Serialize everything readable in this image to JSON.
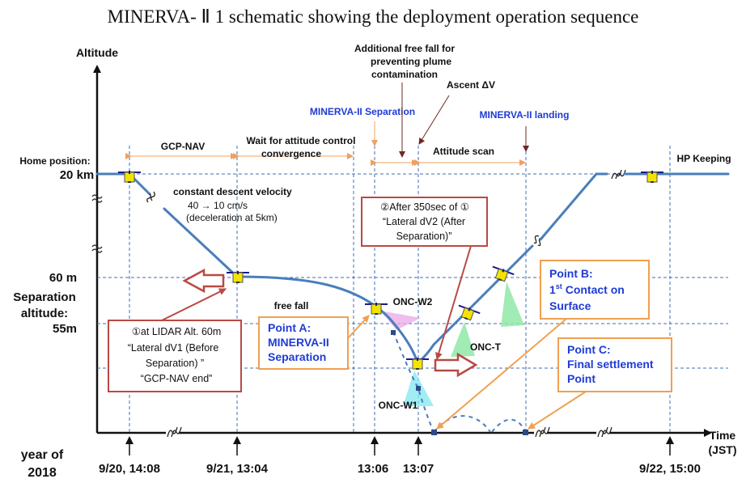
{
  "title": "MINERVA- Ⅱ 1 schematic showing the deployment operation sequence",
  "axis": {
    "y_label": "Altitude",
    "x_label_1": "Time",
    "x_label_2": "(JST)",
    "year_1": "year of",
    "year_2": "2018"
  },
  "altitudes": {
    "home_1": "Home position:",
    "home_2": "20 km",
    "a60": "60 m",
    "sep_1": "Separation",
    "sep_2": "altitude:",
    "sep_3": "55m"
  },
  "times": [
    "9/20, 14:08",
    "9/21, 13:04",
    "13:06",
    "13:07",
    "9/22, 15:00"
  ],
  "phases": {
    "gcp_nav": "GCP-NAV",
    "wait_1": "Wait for attitude control",
    "wait_2": "convergence",
    "attitude_scan": "Attitude scan",
    "hp_keeping": "HP Keeping",
    "free_fall": "free fall"
  },
  "events": {
    "separation": "MINERVA-II Separation",
    "landing": "MINERVA-II landing",
    "ascent": "Ascent ΔV",
    "extra_1": "Additional free fall for",
    "extra_2": "preventing plume",
    "extra_3": "contamination"
  },
  "descent": {
    "line1": "constant descent velocity",
    "line2": "40 → 10 cm/s",
    "line3": "(deceleration at 5km)"
  },
  "cameras": {
    "w2": "ONC-W2",
    "w1": "ONC-W1",
    "t": "ONC-T"
  },
  "callouts": {
    "c1": [
      "①at LIDAR Alt. 60m",
      "“Lateral dV1 (Before",
      "Separation) ”",
      "“GCP-NAV end”"
    ],
    "c2": [
      "②After 350sec of ①",
      "“Lateral dV2 (After",
      "Separation)”"
    ],
    "pointA": [
      "Point A:",
      "MINERVA-II",
      "Separation"
    ],
    "pointB": [
      "Point B:",
      "1",
      "st",
      " Contact on",
      "Surface"
    ],
    "pointC": [
      "Point C:",
      "Final settlement",
      "Point"
    ]
  },
  "colors": {
    "trajectory": "#4a7ebb",
    "red_box": "#b84a43",
    "orange_box": "#f0a050",
    "blue_text": "#1f3bd6",
    "spacecraft": "#f2e400"
  }
}
